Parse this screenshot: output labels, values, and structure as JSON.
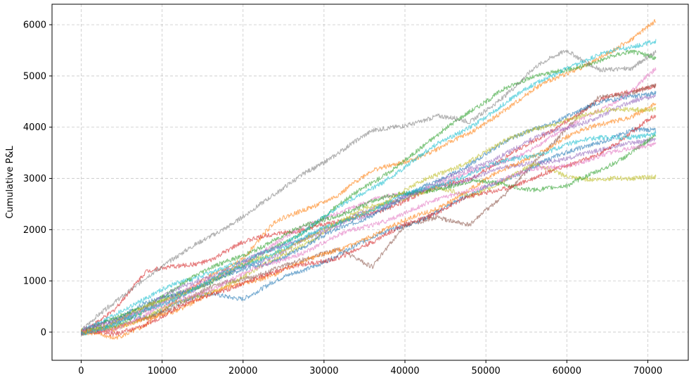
{
  "chart_data": {
    "type": "line",
    "title": "",
    "xlabel": "",
    "ylabel": "Cumulative P&L",
    "xlim": [
      -3600,
      75000
    ],
    "ylim": [
      -550,
      6400
    ],
    "xticks": [
      0,
      10000,
      20000,
      30000,
      40000,
      50000,
      60000,
      70000
    ],
    "yticks": [
      0,
      1000,
      2000,
      3000,
      4000,
      5000,
      6000
    ],
    "grid": true,
    "legend": "none",
    "line_alpha": 0.6,
    "series": [
      {
        "color": "#1f77b4",
        "x": [
          0,
          4000,
          8000,
          12000,
          16000,
          20000,
          24000,
          28000,
          32000,
          36000,
          40000,
          44000,
          48000,
          52000,
          56000,
          60000,
          64000,
          68000,
          71000
        ],
        "y": [
          0,
          230,
          330,
          560,
          740,
          680,
          980,
          1230,
          1560,
          1830,
          2080,
          2370,
          2650,
          2980,
          3250,
          3480,
          3730,
          3950,
          3900
        ]
      },
      {
        "color": "#ff7f0e",
        "x": [
          0,
          4000,
          8000,
          12000,
          16000,
          20000,
          24000,
          28000,
          32000,
          36000,
          40000,
          44000,
          48000,
          52000,
          56000,
          60000,
          64000,
          68000,
          71000
        ],
        "y": [
          0,
          -120,
          160,
          630,
          1120,
          1440,
          2130,
          2440,
          2700,
          3130,
          3360,
          3560,
          3860,
          4330,
          4730,
          5040,
          5380,
          5680,
          6060
        ]
      },
      {
        "color": "#2ca02c",
        "x": [
          0,
          4000,
          8000,
          12000,
          16000,
          20000,
          24000,
          28000,
          32000,
          36000,
          40000,
          44000,
          48000,
          52000,
          56000,
          60000,
          64000,
          68000,
          71000
        ],
        "y": [
          0,
          150,
          420,
          730,
          1000,
          1280,
          1650,
          2030,
          2480,
          2920,
          3380,
          3810,
          4320,
          4750,
          4950,
          5150,
          5300,
          5450,
          5370
        ]
      },
      {
        "color": "#d62728",
        "x": [
          0,
          4000,
          8000,
          12000,
          16000,
          20000,
          24000,
          28000,
          32000,
          36000,
          40000,
          44000,
          48000,
          52000,
          56000,
          60000,
          64000,
          68000,
          71000
        ],
        "y": [
          0,
          450,
          1150,
          1300,
          1420,
          1720,
          1950,
          2020,
          2130,
          2350,
          2550,
          2820,
          3020,
          3350,
          3720,
          4150,
          4500,
          4700,
          4850
        ]
      },
      {
        "color": "#9467bd",
        "x": [
          0,
          4000,
          8000,
          12000,
          16000,
          20000,
          24000,
          28000,
          32000,
          36000,
          40000,
          44000,
          48000,
          52000,
          56000,
          60000,
          64000,
          68000,
          71000
        ],
        "y": [
          0,
          160,
          420,
          710,
          990,
          1260,
          1520,
          1840,
          2130,
          2340,
          2640,
          2820,
          3010,
          3170,
          3320,
          3400,
          3510,
          3730,
          3780
        ]
      },
      {
        "color": "#8c564b",
        "x": [
          0,
          4000,
          8000,
          12000,
          16000,
          20000,
          24000,
          28000,
          32000,
          36000,
          40000,
          44000,
          48000,
          52000,
          56000,
          60000,
          64000,
          68000,
          71000
        ],
        "y": [
          0,
          50,
          270,
          560,
          850,
          1050,
          1250,
          1400,
          1650,
          1280,
          2050,
          2280,
          2080,
          2600,
          3350,
          3950,
          4580,
          4700,
          4800
        ]
      },
      {
        "color": "#e377c2",
        "x": [
          0,
          4000,
          8000,
          12000,
          16000,
          20000,
          24000,
          28000,
          32000,
          36000,
          40000,
          44000,
          48000,
          52000,
          56000,
          60000,
          64000,
          68000,
          71000
        ],
        "y": [
          0,
          180,
          460,
          740,
          1010,
          1360,
          1720,
          2080,
          2370,
          2560,
          2690,
          2890,
          3090,
          3320,
          3620,
          3950,
          4350,
          4710,
          5110
        ]
      },
      {
        "color": "#7f7f7f",
        "x": [
          0,
          4000,
          8000,
          12000,
          16000,
          20000,
          24000,
          28000,
          32000,
          36000,
          40000,
          44000,
          48000,
          52000,
          56000,
          60000,
          64000,
          68000,
          71000
        ],
        "y": [
          0,
          560,
          1100,
          1460,
          1880,
          2280,
          2660,
          3160,
          3530,
          3900,
          4060,
          4220,
          4070,
          4600,
          5150,
          5480,
          5160,
          5120,
          5450
        ]
      },
      {
        "color": "#bcbd22",
        "x": [
          0,
          4000,
          8000,
          12000,
          16000,
          20000,
          24000,
          28000,
          32000,
          36000,
          40000,
          44000,
          48000,
          52000,
          56000,
          60000,
          64000,
          68000,
          71000
        ],
        "y": [
          0,
          100,
          290,
          570,
          820,
          1060,
          1410,
          1780,
          2140,
          2460,
          2650,
          2780,
          2660,
          2960,
          3250,
          3050,
          3000,
          2960,
          3040
        ]
      },
      {
        "color": "#17becf",
        "x": [
          0,
          4000,
          8000,
          12000,
          16000,
          20000,
          24000,
          28000,
          32000,
          36000,
          40000,
          44000,
          48000,
          52000,
          56000,
          60000,
          64000,
          68000,
          71000
        ],
        "y": [
          0,
          370,
          630,
          970,
          1190,
          1350,
          1650,
          2030,
          2430,
          2830,
          3230,
          3640,
          4030,
          4420,
          4820,
          5190,
          5400,
          5550,
          5720
        ]
      },
      {
        "color": "#1f77b4",
        "x": [
          0,
          4000,
          8000,
          12000,
          16000,
          20000,
          24000,
          28000,
          32000,
          36000,
          40000,
          44000,
          48000,
          52000,
          56000,
          60000,
          64000,
          68000,
          71000
        ],
        "y": [
          0,
          200,
          540,
          780,
          980,
          1200,
          1430,
          1690,
          2020,
          2320,
          2620,
          2950,
          3300,
          3650,
          3970,
          4230,
          4450,
          4620,
          4700
        ]
      },
      {
        "color": "#ff7f0e",
        "x": [
          0,
          4000,
          8000,
          12000,
          16000,
          20000,
          24000,
          28000,
          32000,
          36000,
          40000,
          44000,
          48000,
          52000,
          56000,
          60000,
          64000,
          68000,
          71000
        ],
        "y": [
          0,
          20,
          250,
          470,
          720,
          960,
          1160,
          1380,
          1630,
          1900,
          2150,
          2440,
          2780,
          3130,
          3480,
          3800,
          4030,
          4240,
          4460
        ]
      },
      {
        "color": "#2ca02c",
        "x": [
          0,
          4000,
          8000,
          12000,
          16000,
          20000,
          24000,
          28000,
          32000,
          36000,
          40000,
          44000,
          48000,
          52000,
          56000,
          60000,
          64000,
          68000,
          71000
        ],
        "y": [
          0,
          220,
          530,
          900,
          1230,
          1530,
          1800,
          2080,
          2320,
          2540,
          2700,
          2820,
          2910,
          2900,
          2800,
          2820,
          3170,
          3520,
          3820
        ]
      },
      {
        "color": "#d62728",
        "x": [
          0,
          4000,
          8000,
          12000,
          16000,
          20000,
          24000,
          28000,
          32000,
          36000,
          40000,
          44000,
          48000,
          52000,
          56000,
          60000,
          64000,
          68000,
          71000
        ],
        "y": [
          0,
          -60,
          180,
          460,
          720,
          990,
          1140,
          1350,
          1480,
          1720,
          2130,
          2340,
          2620,
          2820,
          3010,
          3220,
          3510,
          3880,
          4210
        ]
      },
      {
        "color": "#9467bd",
        "x": [
          0,
          4000,
          8000,
          12000,
          16000,
          20000,
          24000,
          28000,
          32000,
          36000,
          40000,
          44000,
          48000,
          52000,
          56000,
          60000,
          64000,
          68000,
          71000
        ],
        "y": [
          0,
          220,
          510,
          820,
          1110,
          1380,
          1610,
          1870,
          2100,
          2390,
          2650,
          2900,
          3180,
          3480,
          3760,
          3990,
          4230,
          4460,
          4620
        ]
      },
      {
        "color": "#e377c2",
        "x": [
          0,
          4000,
          8000,
          12000,
          16000,
          20000,
          24000,
          28000,
          32000,
          36000,
          40000,
          44000,
          48000,
          52000,
          56000,
          60000,
          64000,
          68000,
          71000
        ],
        "y": [
          0,
          80,
          320,
          610,
          860,
          1110,
          1370,
          1610,
          1880,
          2110,
          2340,
          2560,
          2780,
          2970,
          3160,
          3280,
          3420,
          3570,
          3700
        ]
      },
      {
        "color": "#bcbd22",
        "x": [
          0,
          4000,
          8000,
          12000,
          16000,
          20000,
          24000,
          28000,
          32000,
          36000,
          40000,
          44000,
          48000,
          52000,
          56000,
          60000,
          64000,
          68000,
          71000
        ],
        "y": [
          0,
          190,
          470,
          740,
          1010,
          1290,
          1570,
          1840,
          2130,
          2430,
          2750,
          3060,
          3370,
          3680,
          3960,
          4160,
          4280,
          4360,
          4390
        ]
      },
      {
        "color": "#17becf",
        "x": [
          0,
          4000,
          8000,
          12000,
          16000,
          20000,
          24000,
          28000,
          32000,
          36000,
          40000,
          44000,
          48000,
          52000,
          56000,
          60000,
          64000,
          68000,
          71000
        ],
        "y": [
          0,
          120,
          410,
          710,
          1000,
          1280,
          1580,
          1860,
          2150,
          2410,
          2650,
          2880,
          3100,
          3300,
          3480,
          3660,
          3770,
          3840,
          3880
        ]
      }
    ]
  }
}
